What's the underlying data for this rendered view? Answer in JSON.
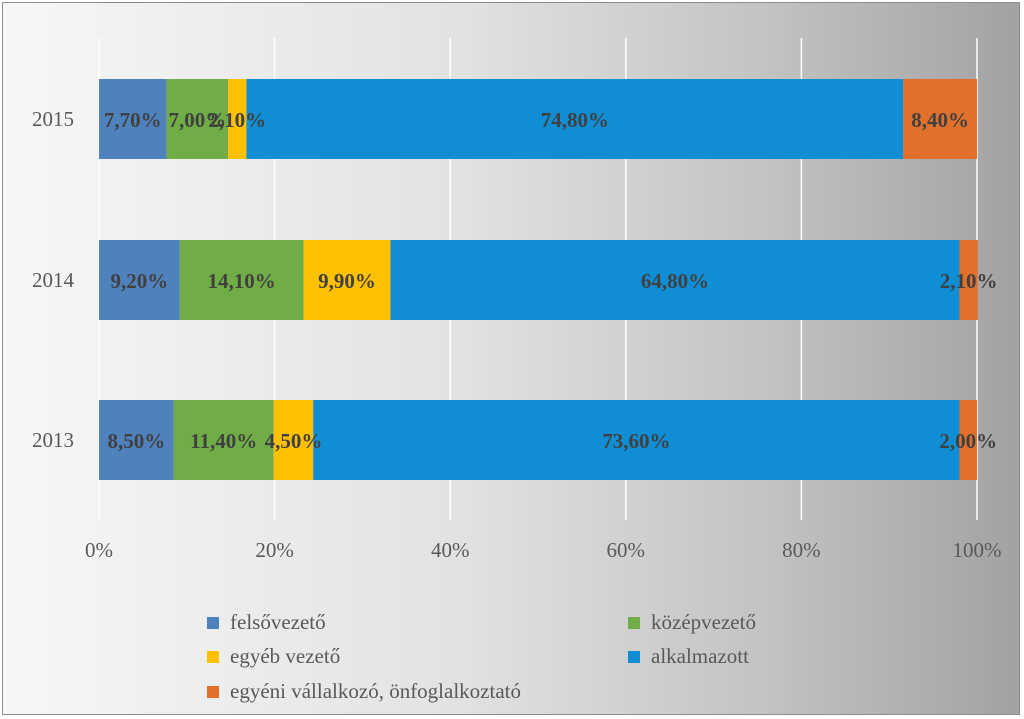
{
  "chart_data": {
    "type": "bar",
    "orientation": "horizontal",
    "stacked": "percent",
    "categories": [
      "2015",
      "2014",
      "2013"
    ],
    "series": [
      {
        "name": "felsővezető",
        "color": "#4f81bd",
        "values": [
          7.7,
          9.2,
          8.5
        ],
        "labels": [
          "7,70%",
          "9,20%",
          "8,50%"
        ]
      },
      {
        "name": "középvezető",
        "color": "#70ad47",
        "values": [
          7.0,
          14.1,
          11.4
        ],
        "labels": [
          "7,00%",
          "14,10%",
          "11,40%"
        ]
      },
      {
        "name": "egyéb vezető",
        "color": "#ffc000",
        "values": [
          2.1,
          9.9,
          4.5
        ],
        "labels": [
          "2,10%",
          "9,90%",
          "4,50%"
        ]
      },
      {
        "name": "alkalmazott",
        "color": "#0f8ed6",
        "values": [
          74.8,
          64.8,
          73.6
        ],
        "labels": [
          "74,80%",
          "64,80%",
          "73,60%"
        ]
      },
      {
        "name": "egyéni vállalkozó, önfoglalkoztató",
        "color": "#e0702a",
        "values": [
          8.4,
          2.1,
          2.0
        ],
        "labels": [
          "8,40%",
          "2,10%",
          "2,00%"
        ]
      }
    ],
    "xlim": [
      0,
      100
    ],
    "xticks": [
      "0%",
      "20%",
      "40%",
      "60%",
      "80%",
      "100%"
    ],
    "grid": true,
    "legend_position": "bottom",
    "title": "",
    "xlabel": "",
    "ylabel": ""
  }
}
